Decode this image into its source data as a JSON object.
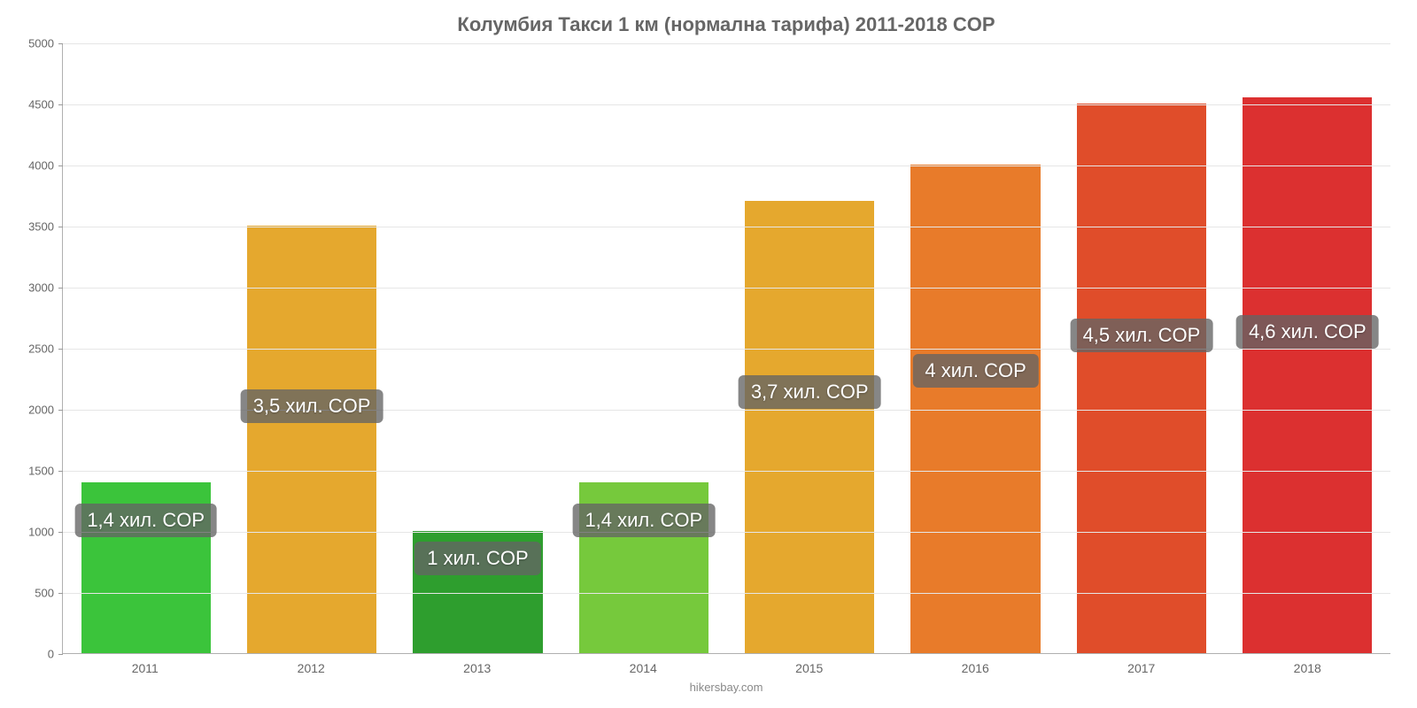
{
  "chart": {
    "type": "bar",
    "title": "Колумбия Такси 1 км (нормална тарифа) 2011-2018 COP",
    "title_fontsize": 22,
    "title_color": "#666666",
    "footer": "hikersbay.com",
    "background_color": "#ffffff",
    "grid_color": "#e6e6e6",
    "axis_color": "#b0b0b0",
    "tick_label_color": "#666666",
    "tick_fontsize": 13,
    "ylim": [
      0,
      5000
    ],
    "ytick_step": 500,
    "yticks": [
      0,
      500,
      1000,
      1500,
      2000,
      2500,
      3000,
      3500,
      4000,
      4500,
      5000
    ],
    "bar_width_ratio": 0.78,
    "categories": [
      "2011",
      "2012",
      "2013",
      "2014",
      "2015",
      "2016",
      "2017",
      "2018"
    ],
    "values": [
      1400,
      3500,
      1000,
      1400,
      3700,
      4000,
      4500,
      4550
    ],
    "bar_colors": [
      "#3bc43b",
      "#e5a82e",
      "#2e9e2e",
      "#76c93c",
      "#e5a82e",
      "#e87b2a",
      "#e04d2a",
      "#dc3030"
    ],
    "value_labels": [
      "1,4 хил. COP",
      "3,5 хил. COP",
      "1 хил. COP",
      "1,4 хил. COP",
      "3,7 хил. COP",
      "4 хил. COP",
      "4,5 хил. COP",
      "4,6 хил. COP"
    ],
    "badge_bg": "rgba(100,100,100,0.78)",
    "badge_text_color": "#ffffff",
    "badge_fontsize": 22
  }
}
